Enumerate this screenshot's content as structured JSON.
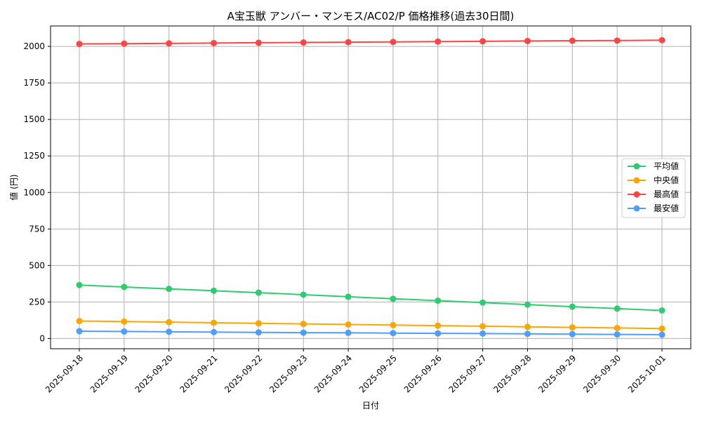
{
  "chart_data": {
    "type": "line",
    "title": "A宝玉獣 アンバー・マンモス/AC02/P 価格推移(過去30日間)",
    "xlabel": "日付",
    "ylabel": "値 (円)",
    "categories": [
      "2025-09-18",
      "2025-09-19",
      "2025-09-20",
      "2025-09-21",
      "2025-09-22",
      "2025-09-23",
      "2025-09-24",
      "2025-09-25",
      "2025-09-26",
      "2025-09-27",
      "2025-09-28",
      "2025-09-29",
      "2025-09-30",
      "2025-10-01"
    ],
    "ylim": [
      -70,
      2140
    ],
    "yticks": [
      0,
      250,
      500,
      750,
      1000,
      1250,
      1500,
      1750,
      2000
    ],
    "grid": true,
    "legend_position": "right",
    "series": [
      {
        "name": "平均値",
        "color": "#2ecc71",
        "values": [
          366,
          353,
          340,
          327,
          314,
          300,
          286,
          272,
          259,
          246,
          232,
          218,
          205,
          192
        ]
      },
      {
        "name": "中央値",
        "color": "#ffa500",
        "values": [
          120,
          116,
          112,
          108,
          104,
          100,
          96,
          92,
          88,
          84,
          80,
          76,
          72,
          68
        ]
      },
      {
        "name": "最高値",
        "color": "#ff4444",
        "values": [
          2017,
          2019,
          2021,
          2023,
          2025,
          2027,
          2029,
          2031,
          2033,
          2035,
          2037,
          2039,
          2040,
          2043
        ]
      },
      {
        "name": "最安値",
        "color": "#4f9dff",
        "values": [
          50,
          48,
          46,
          44,
          42,
          40,
          39,
          37,
          35,
          34,
          32,
          30,
          28,
          26
        ]
      }
    ]
  }
}
